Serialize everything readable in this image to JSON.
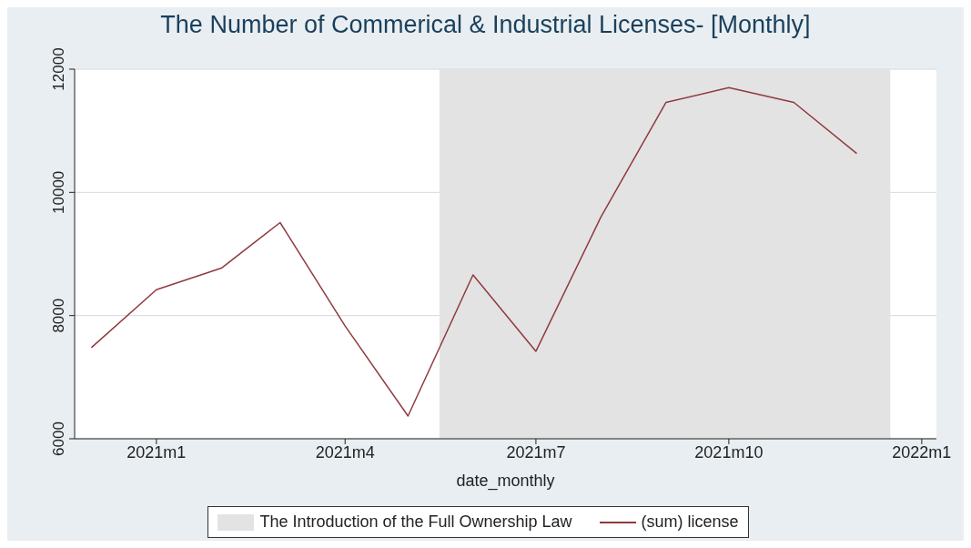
{
  "chart_data": {
    "type": "line",
    "title": "The Number of Commerical & Industrial Licenses- [Monthly]",
    "xlabel": "date_monthly",
    "x": [
      "2020-12",
      "2021-01",
      "2021-02",
      "2021-03",
      "2021-04",
      "2021-05",
      "2021-06",
      "2021-07",
      "2021-08",
      "2021-09",
      "2021-10",
      "2021-11",
      "2021-12"
    ],
    "series": [
      {
        "name": "(sum) license",
        "color": "#8f3a3f",
        "values": [
          7480,
          8420,
          8770,
          9510,
          7830,
          6370,
          8660,
          7420,
          9600,
          11460,
          11700,
          11460,
          10630
        ]
      }
    ],
    "xlim": [
      "2020-11-23",
      "2022-01-08"
    ],
    "xticks": [
      {
        "value": "2021-01",
        "label": "2021m1"
      },
      {
        "value": "2021-04",
        "label": "2021m4"
      },
      {
        "value": "2021-07",
        "label": "2021m7"
      },
      {
        "value": "2021-10",
        "label": "2021m10"
      },
      {
        "value": "2022-01",
        "label": "2022m1"
      }
    ],
    "ylim": [
      6000,
      12000
    ],
    "yticks": [
      6000,
      8000,
      10000,
      12000
    ],
    "bands": [
      {
        "axis": "x",
        "from": "2021-05-16",
        "to": "2021-12-17",
        "label": "The Introduction of the Full Ownership Law",
        "color": "#e3e3e3"
      }
    ],
    "grid": "y",
    "legend": "bottom",
    "marker": "none",
    "line_style": "solid"
  }
}
